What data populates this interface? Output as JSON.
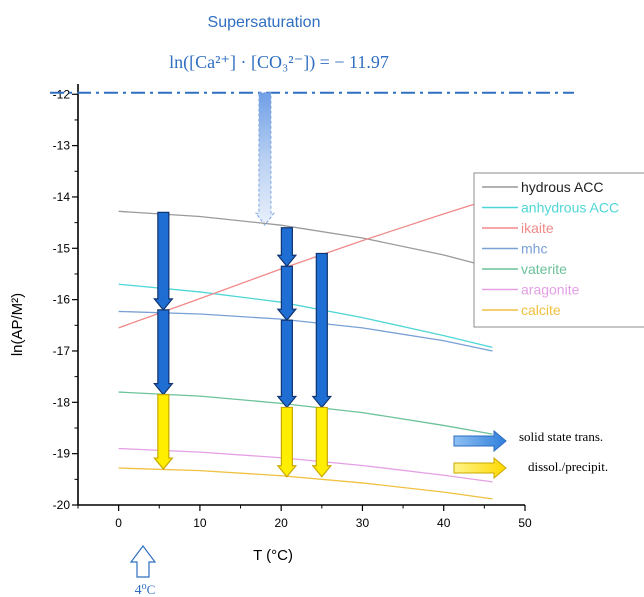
{
  "chart_data": {
    "type": "line",
    "title": "",
    "xlabel": "T (°C)",
    "ylabel": "ln(AP/M²)",
    "xlim": [
      -5,
      50
    ],
    "ylim": [
      -20,
      -11.8
    ],
    "x_ticks": [
      0,
      10,
      20,
      30,
      40,
      50
    ],
    "y_ticks": [
      -12,
      -13,
      -14,
      -15,
      -16,
      -17,
      -18,
      -19,
      -20
    ],
    "grid": false,
    "legend_position": "right",
    "series": [
      {
        "name": "hydrous ACC",
        "color": "#9a9a9a",
        "x": [
          0,
          10,
          20,
          30,
          40,
          46
        ],
        "y": [
          -14.28,
          -14.38,
          -14.55,
          -14.8,
          -15.13,
          -15.38
        ]
      },
      {
        "name": "anhydrous ACC",
        "color": "#4fd6d6",
        "x": [
          0,
          10,
          20,
          30,
          40,
          46
        ],
        "y": [
          -15.7,
          -15.85,
          -16.05,
          -16.35,
          -16.7,
          -16.93
        ]
      },
      {
        "name": "ikaite",
        "color": "#f08a8a",
        "x": [
          0,
          10,
          20,
          30,
          40,
          46
        ],
        "y": [
          -16.55,
          -15.98,
          -15.4,
          -14.85,
          -14.33,
          -14.03
        ]
      },
      {
        "name": "mhc",
        "color": "#7aa0d6",
        "x": [
          0,
          10,
          20,
          30,
          40,
          46
        ],
        "y": [
          -16.23,
          -16.28,
          -16.38,
          -16.55,
          -16.8,
          -17.0
        ]
      },
      {
        "name": "vaterite",
        "color": "#6cc29a",
        "x": [
          0,
          10,
          20,
          30,
          40,
          46
        ],
        "y": [
          -17.8,
          -17.88,
          -18.02,
          -18.2,
          -18.45,
          -18.62
        ]
      },
      {
        "name": "aragonite",
        "color": "#e4a0e4",
        "x": [
          0,
          10,
          20,
          30,
          40,
          46
        ],
        "y": [
          -18.9,
          -18.97,
          -19.08,
          -19.23,
          -19.42,
          -19.55
        ]
      },
      {
        "name": "calcite",
        "color": "#f0c040",
        "x": [
          0,
          10,
          20,
          30,
          40,
          46
        ],
        "y": [
          -19.28,
          -19.33,
          -19.43,
          -19.57,
          -19.75,
          -19.88
        ]
      }
    ],
    "supersaturation": {
      "heading": "Supersaturation",
      "equation": "ln([Ca²⁺] · [CO₃²⁻]) = − 11.97",
      "value": -11.97,
      "line_color": "#2f6fc0"
    },
    "transformation_arrows": [
      {
        "x": 5.5,
        "blue_segments": [
          [
            -14.3,
            -16.2
          ],
          [
            -16.2,
            -17.85
          ]
        ],
        "yellow_segment": [
          -17.85,
          -19.3
        ]
      },
      {
        "x": 20.7,
        "blue_segments": [
          [
            -14.6,
            -15.35
          ],
          [
            -15.35,
            -16.4
          ],
          [
            -16.4,
            -18.1
          ]
        ],
        "yellow_segment": [
          -18.1,
          -19.45
        ]
      },
      {
        "x": 25,
        "blue_segments": [
          [
            -15.1,
            -18.1
          ]
        ],
        "yellow_segment": [
          -18.1,
          -19.45
        ]
      }
    ],
    "supersaturation_arrow_x": 18,
    "temperature_marker": {
      "label": "4ºC",
      "x": 3.5
    },
    "arrow_legend": [
      {
        "label": "solid state trans.",
        "color": "#3a8be0"
      },
      {
        "label": "dissol./precipit.",
        "color": "#ffe000"
      }
    ]
  }
}
